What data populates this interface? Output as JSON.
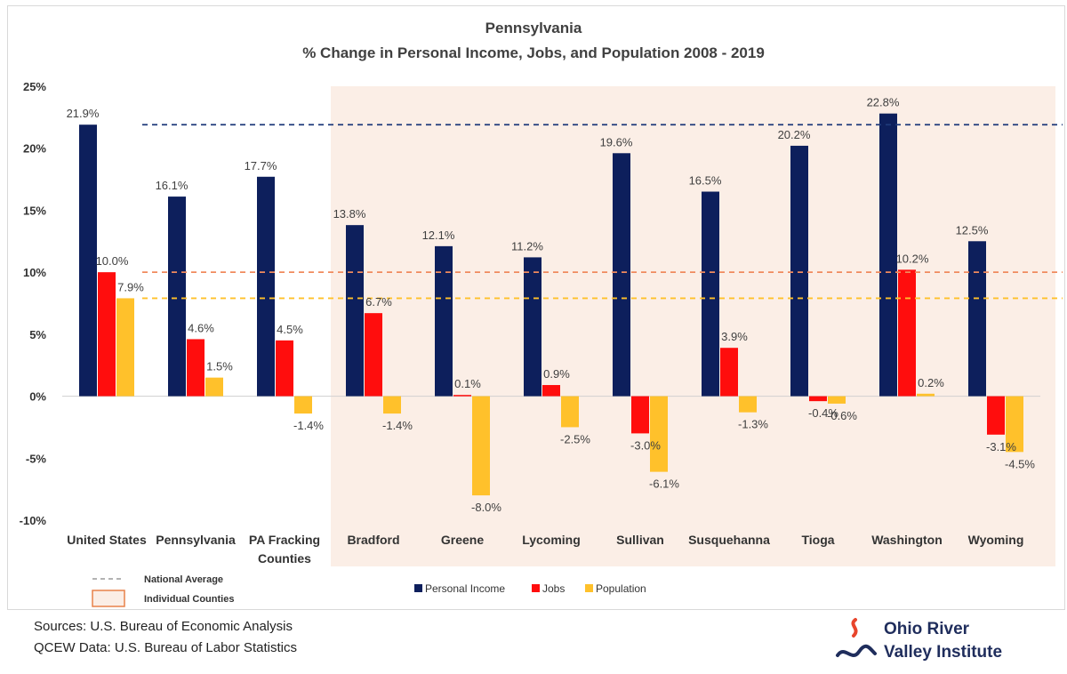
{
  "chart_data": {
    "type": "bar",
    "title": "Pennsylvania",
    "subtitle": "% Change in Personal Income, Jobs, and Population 2008 - 2019",
    "categories": [
      "United States",
      "Pennsylvania",
      "PA Fracking Counties",
      "Bradford",
      "Greene",
      "Lycoming",
      "Sullivan",
      "Susquehanna",
      "Tioga",
      "Washington",
      "Wyoming"
    ],
    "series": [
      {
        "name": "Personal Income",
        "color": "#0d1f5c",
        "values": [
          21.9,
          16.1,
          17.7,
          13.8,
          12.1,
          11.2,
          19.6,
          16.5,
          20.2,
          22.8,
          12.5
        ]
      },
      {
        "name": "Jobs",
        "color": "#ff0d0d",
        "values": [
          10.0,
          4.6,
          4.5,
          6.7,
          0.1,
          0.9,
          -3.0,
          3.9,
          -0.4,
          10.2,
          -3.1
        ]
      },
      {
        "name": "Population",
        "color": "#ffc12b",
        "values": [
          7.9,
          1.5,
          -1.4,
          -1.4,
          -8.0,
          -2.5,
          -6.1,
          -1.3,
          -0.6,
          0.2,
          -4.5
        ]
      }
    ],
    "data_labels": [
      [
        "21.9%",
        "16.1%",
        "17.7%",
        "13.8%",
        "12.1%",
        "11.2%",
        "19.6%",
        "16.5%",
        "20.2%",
        "22.8%",
        "12.5%"
      ],
      [
        "10.0%",
        "4.6%",
        "4.5%",
        "6.7%",
        "0.1%",
        "0.9%",
        "-3.0%",
        "3.9%",
        "-0.4%",
        "10.2%",
        "-3.1%"
      ],
      [
        "7.9%",
        "1.5%",
        "-1.4%",
        "-1.4%",
        "-8.0%",
        "-2.5%",
        "-6.1%",
        "-1.3%",
        "-0.6%",
        "0.2%",
        "-4.5%"
      ]
    ],
    "ylim": [
      -10,
      25
    ],
    "yticks": [
      25,
      20,
      15,
      10,
      5,
      0,
      -5,
      -10
    ],
    "ytick_labels": [
      "25%",
      "20%",
      "15%",
      "10%",
      "5%",
      "0%",
      "-5%",
      "-10%"
    ],
    "reference_lines": [
      {
        "series": "Personal Income",
        "value": 21.9,
        "color": "#1f3a7a"
      },
      {
        "series": "Jobs",
        "value": 10.0,
        "color": "#f08a5d"
      },
      {
        "series": "Population",
        "value": 7.9,
        "color": "#ffc12b"
      }
    ],
    "highlight_region": {
      "from_category": "Bradford",
      "to_category": "Wyoming",
      "color": "#fbeee6"
    },
    "grid": false,
    "legend_position": "bottom"
  },
  "legend_key": {
    "national_average": "National Average",
    "individual_counties": "Individual Counties"
  },
  "sources": {
    "line1": "Sources: U.S. Bureau of Economic Analysis",
    "line2": "QCEW Data: U.S. Bureau of Labor Statistics"
  },
  "logo": {
    "line1": "Ohio River",
    "line2": "Valley Institute"
  }
}
